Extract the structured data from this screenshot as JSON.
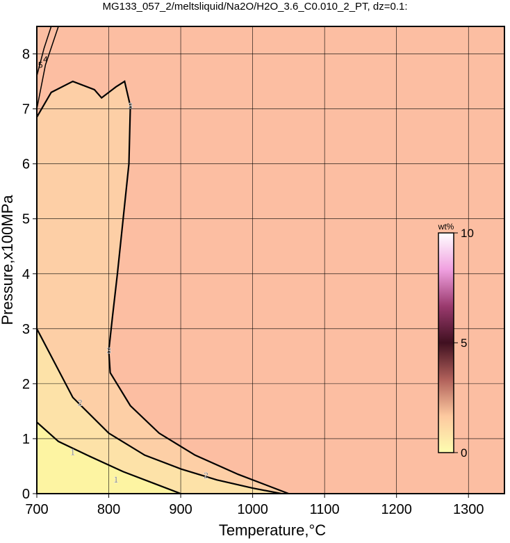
{
  "chart_data": {
    "type": "contour",
    "title": "MG133_057_2/meltsliquid/Na2O/H2O_3.6_C0.010_2_PT, dz=0.1:",
    "x_label": "Temperature,°C",
    "y_label": "Pressure,x100MPa",
    "xlim": [
      700,
      1350
    ],
    "ylim": [
      0,
      8.5
    ],
    "xticks": [
      700,
      800,
      900,
      1000,
      1100,
      1200,
      1300
    ],
    "yticks": [
      0,
      1,
      2,
      3,
      4,
      5,
      6,
      7,
      8
    ],
    "grid": true,
    "background": "#fcbea2",
    "contours": [
      {
        "level": 3,
        "fill": "#fdcfa6",
        "x": [
          700,
          720,
          750,
          780,
          790,
          810,
          822,
          830,
          828,
          820,
          812,
          805,
          800,
          802,
          830,
          870,
          920,
          980,
          1050
        ],
        "y": [
          6.85,
          7.3,
          7.5,
          7.35,
          7.2,
          7.4,
          7.5,
          7.05,
          6,
          5,
          4,
          3.2,
          2.6,
          2.2,
          1.6,
          1.1,
          0.7,
          0.35,
          0
        ],
        "label_at": [
          [
            830,
            7.05
          ],
          [
            800,
            2.6
          ]
        ]
      },
      {
        "level": 2,
        "fill": "#fde2a8",
        "x": [
          700,
          720,
          750,
          800,
          850,
          900,
          950,
          1000,
          1040
        ],
        "y": [
          3,
          2.5,
          1.75,
          1.1,
          0.7,
          0.45,
          0.25,
          0.1,
          0
        ],
        "label_at": [
          [
            760,
            1.65
          ],
          [
            935,
            0.33
          ]
        ]
      },
      {
        "level": 1,
        "fill": "#fdf4a2",
        "x": [
          700,
          730,
          770,
          820,
          860,
          900
        ],
        "y": [
          1.3,
          0.95,
          0.7,
          0.4,
          0.2,
          0
        ],
        "label_at": [
          [
            750,
            0.75
          ],
          [
            810,
            0.25
          ]
        ]
      },
      {
        "level": 4,
        "x": [
          700,
          712,
          730
        ],
        "y": [
          7.0,
          7.8,
          8.5
        ],
        "label_at": [
          [
            712,
            7.9
          ]
        ]
      },
      {
        "level": 5,
        "x": [
          700,
          710,
          720
        ],
        "y": [
          7.6,
          8.1,
          8.5
        ],
        "label_at": [
          [
            705,
            7.8
          ]
        ]
      }
    ],
    "colorbar": {
      "label": "wt%",
      "lim": [
        0,
        10
      ],
      "ticks": [
        0,
        5,
        10
      ],
      "colors": [
        "#fdfdb0",
        "#fdc9a0",
        "#b0605a",
        "#401020",
        "#9a3a6e",
        "#f0a0e0",
        "#ffffff"
      ]
    }
  }
}
